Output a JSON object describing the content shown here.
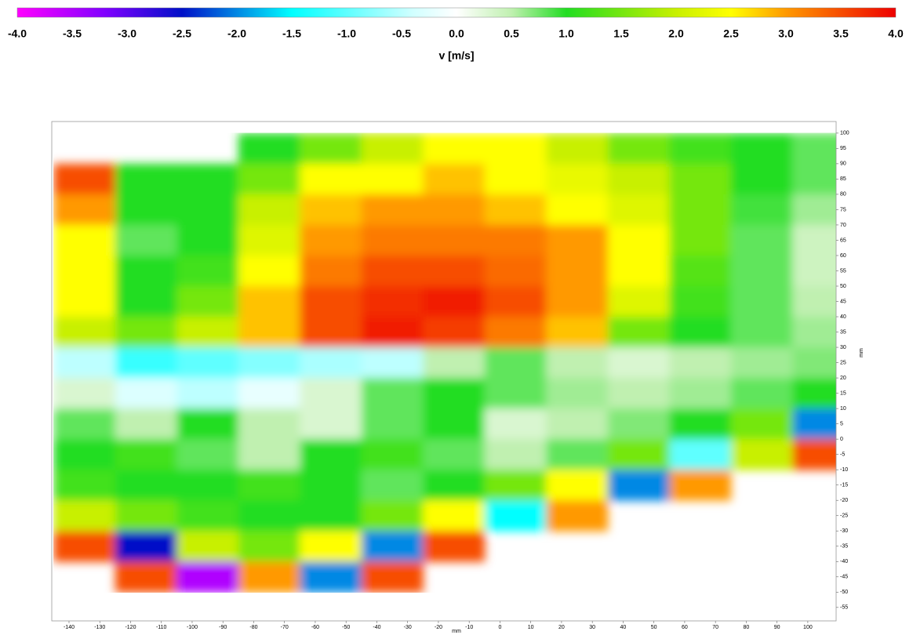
{
  "chart_data": {
    "type": "heatmap",
    "colorbar": {
      "label": "v [m/s]",
      "lim": [
        -4,
        4
      ],
      "ticks": [
        {
          "value": -4,
          "label": "-4.0"
        },
        -3.5,
        {
          "value": -3,
          "label": "-3.0"
        },
        -2.5,
        {
          "value": -2,
          "label": "-2.0"
        },
        -1.5,
        {
          "value": -1,
          "label": "-1.0"
        },
        -0.5,
        {
          "value": 0,
          "label": "0.0"
        },
        0.5,
        {
          "value": 1,
          "label": "1.0"
        },
        1.5,
        {
          "value": 2,
          "label": "2.0"
        },
        2.5,
        {
          "value": 3,
          "label": "3.0"
        },
        3.5,
        {
          "value": 4,
          "label": "4.0"
        }
      ]
    },
    "colorscale": [
      [
        -4,
        "#ff00ff"
      ],
      [
        -3.2,
        "#8000ff"
      ],
      [
        -2.5,
        "#0010c8"
      ],
      [
        -1.5,
        "#00ffff"
      ],
      [
        -0.4,
        "#d0ffff"
      ],
      [
        0,
        "#ffffff"
      ],
      [
        0.5,
        "#c0f0b0"
      ],
      [
        1,
        "#22dd22"
      ],
      [
        2,
        "#c8f000"
      ],
      [
        2.5,
        "#ffff00"
      ],
      [
        3,
        "#ff9900"
      ],
      [
        4,
        "#ee0000"
      ]
    ],
    "x_label": "mm",
    "y_label": "mm",
    "xlim": [
      -145.6,
      109.2
    ],
    "ylim": [
      -59.4,
      103.8
    ],
    "xticks": [
      -140,
      -130,
      -120,
      -110,
      -100,
      -90,
      -80,
      -70,
      -60,
      -50,
      -40,
      -30,
      -20,
      -10,
      0,
      10,
      20,
      30,
      40,
      50,
      60,
      70,
      80,
      90,
      100
    ],
    "yticks": [
      -55,
      -50,
      -45,
      -40,
      -35,
      -30,
      -25,
      -20,
      -15,
      -10,
      -5,
      0,
      5,
      10,
      15,
      20,
      25,
      30,
      35,
      40,
      45,
      50,
      55,
      60,
      65,
      70,
      75,
      80,
      85,
      90,
      95,
      100
    ],
    "x": [
      -135,
      -115,
      -95,
      -75,
      -55,
      -35,
      -15,
      5,
      25,
      45,
      65,
      85,
      105
    ],
    "y": [
      95,
      85,
      75,
      65,
      55,
      45,
      35,
      25,
      15,
      5,
      -5,
      -15,
      -25,
      -35,
      -45,
      -55
    ],
    "z": [
      [
        null,
        null,
        null,
        1.0,
        1.5,
        2.0,
        2.5,
        2.5,
        2.0,
        1.5,
        1.2,
        1.0,
        0.8
      ],
      [
        3.5,
        1.0,
        1.0,
        1.5,
        2.5,
        2.5,
        2.8,
        2.5,
        2.3,
        2.0,
        1.5,
        1.0,
        0.8
      ],
      [
        3.0,
        1.0,
        1.0,
        2.0,
        2.8,
        3.0,
        3.0,
        2.8,
        2.5,
        2.2,
        1.5,
        0.9,
        0.6
      ],
      [
        2.5,
        0.8,
        1.0,
        2.2,
        3.0,
        3.2,
        3.2,
        3.2,
        3.0,
        2.5,
        1.5,
        0.8,
        0.4
      ],
      [
        2.5,
        1.0,
        1.2,
        2.5,
        3.2,
        3.5,
        3.5,
        3.3,
        3.0,
        2.5,
        1.3,
        0.8,
        0.4
      ],
      [
        2.5,
        1.0,
        1.5,
        2.8,
        3.5,
        3.7,
        3.8,
        3.5,
        3.0,
        2.2,
        1.2,
        0.8,
        0.5
      ],
      [
        2.0,
        1.5,
        2.0,
        2.8,
        3.5,
        3.8,
        3.6,
        3.2,
        2.8,
        1.5,
        1.0,
        0.8,
        0.6
      ],
      [
        -0.5,
        -1.2,
        -1.0,
        -0.8,
        -0.6,
        -0.5,
        0.5,
        0.8,
        0.5,
        0.3,
        0.5,
        0.6,
        0.7
      ],
      [
        0.3,
        -0.3,
        -0.5,
        -0.2,
        0.3,
        0.8,
        1.0,
        0.8,
        0.6,
        0.5,
        0.6,
        0.8,
        1.0
      ],
      [
        0.8,
        0.5,
        1.0,
        0.5,
        0.3,
        0.8,
        1.0,
        0.3,
        0.5,
        0.7,
        1.0,
        1.5,
        -2.0
      ],
      [
        1.0,
        1.2,
        0.8,
        0.5,
        1.0,
        1.2,
        0.8,
        0.5,
        0.8,
        1.5,
        -1.0,
        2.0,
        3.5
      ],
      [
        1.2,
        1.0,
        1.0,
        1.2,
        1.0,
        0.8,
        1.0,
        1.5,
        2.5,
        -2.0,
        3.0,
        null,
        null
      ],
      [
        2.0,
        1.5,
        1.2,
        1.0,
        1.0,
        1.5,
        2.5,
        -1.5,
        3.0,
        null,
        null,
        null,
        null
      ],
      [
        3.5,
        -2.5,
        2.0,
        1.5,
        2.5,
        -2.0,
        3.5,
        null,
        null,
        null,
        null,
        null,
        null
      ],
      [
        null,
        3.5,
        -3.5,
        3.0,
        -2.0,
        3.5,
        null,
        null,
        null,
        null,
        null,
        null,
        null
      ],
      [
        null,
        null,
        null,
        null,
        null,
        null,
        null,
        null,
        null,
        null,
        null,
        null,
        null
      ]
    ]
  }
}
